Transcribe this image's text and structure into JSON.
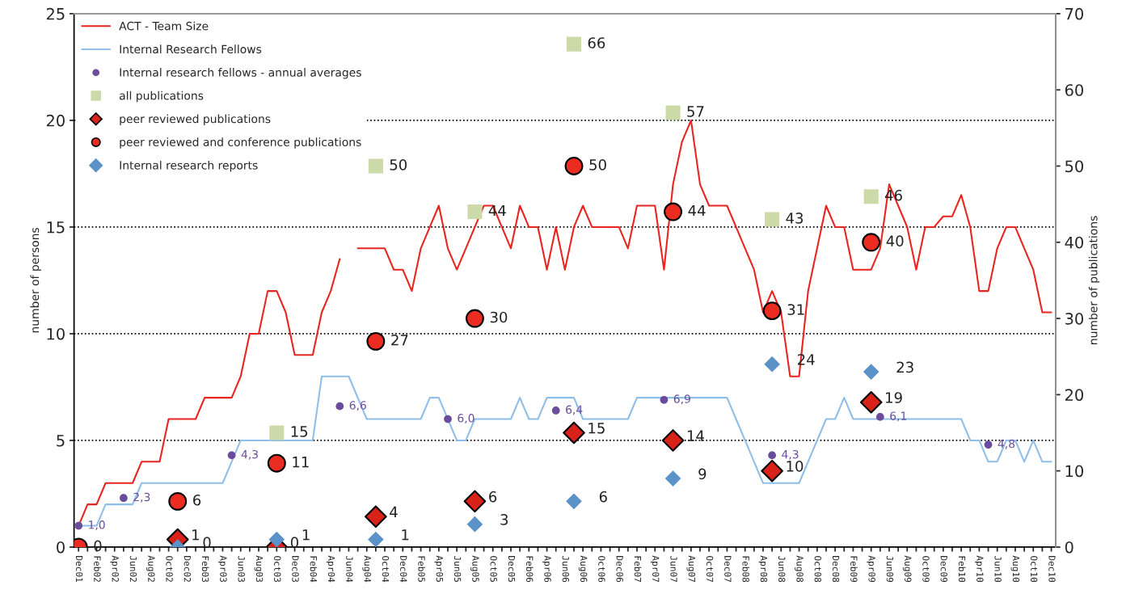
{
  "chart_data": {
    "type": "line",
    "categories": [
      "Dec01",
      null,
      "Feb02",
      null,
      "Apr02",
      null,
      "Jun02",
      null,
      "Aug02",
      null,
      "Oct02",
      null,
      "Dec02",
      null,
      "Feb03",
      null,
      "Apr03",
      null,
      "Jun03",
      null,
      "Aug03",
      null,
      "Oct03",
      null,
      "Dec03",
      null,
      "Feb04",
      null,
      "Apr04",
      null,
      "Jun04",
      null,
      "Aug04",
      null,
      "Oct04",
      null,
      "Dec04",
      null,
      "Feb05",
      null,
      "Apr05",
      null,
      "Jun05",
      null,
      "Aug05",
      null,
      "Oct05",
      null,
      "Dec05",
      null,
      "Feb06",
      null,
      "Apr06",
      null,
      "Jun06",
      null,
      "Aug06",
      null,
      "Oct06",
      null,
      "Dec06",
      null,
      "Feb07",
      null,
      "Apr07",
      null,
      "Jun07",
      null,
      "Aug07",
      null,
      "Oct07",
      null,
      "Dec07",
      null,
      "Feb08",
      null,
      "Apr08",
      null,
      "Jun08",
      null,
      "Aug08",
      null,
      "Oct08",
      null,
      "Dec08",
      null,
      "Feb09",
      null,
      "Apr09",
      null,
      "Jun09",
      null,
      "Aug09",
      null,
      "Oct09",
      null,
      "Dec09",
      null,
      "Feb10",
      null,
      "Apr10",
      null,
      "Jun10",
      null,
      "Aug10",
      null,
      "Oct10",
      null,
      "Dec10"
    ],
    "ylabel": "number of persons",
    "y2label": "number of publications",
    "ylim": [
      0,
      25
    ],
    "yticks": [
      0,
      5,
      10,
      15,
      20,
      25
    ],
    "y2lim": [
      0,
      70
    ],
    "y2ticks": [
      0,
      10,
      20,
      30,
      40,
      50,
      60,
      70
    ],
    "grid": "y",
    "legend": "top left",
    "series": [
      {
        "name": "ACT - Team Size",
        "color": "#e8251f",
        "marker": "none",
        "values": [
          1,
          2,
          2,
          3,
          3,
          3,
          3,
          4,
          4,
          4,
          6,
          6,
          6,
          6,
          7,
          7,
          7,
          7,
          8,
          10,
          10,
          12,
          12,
          11,
          9,
          9,
          9,
          11,
          12,
          13.5,
          null,
          14,
          14,
          14,
          14,
          13,
          13,
          12,
          14,
          15,
          16,
          14,
          13,
          14,
          15,
          16,
          16,
          15,
          14,
          16,
          15,
          15,
          13,
          15,
          13,
          15,
          16,
          15,
          15,
          15,
          15,
          14,
          16,
          16,
          16,
          13,
          17,
          19,
          20,
          17,
          16,
          16,
          16,
          15,
          14,
          13,
          11,
          12,
          11,
          8,
          8,
          12,
          14,
          16,
          15,
          15,
          13,
          13,
          13,
          14,
          17,
          16,
          15,
          13,
          15,
          15,
          15.5,
          15.5,
          16.5,
          15,
          12,
          12,
          14,
          15,
          15,
          14,
          13,
          11,
          11
        ]
      },
      {
        "name": "Internal Research Fellows",
        "color": "#8fbfe8",
        "marker": "none",
        "values": [
          1,
          1,
          1,
          2,
          2,
          2,
          2,
          3,
          3,
          3,
          3,
          3,
          3,
          3,
          3,
          3,
          3,
          4,
          5,
          5,
          5,
          5,
          5,
          5,
          5,
          5,
          5,
          8,
          8,
          8,
          8,
          7,
          6,
          6,
          6,
          6,
          6,
          6,
          6,
          7,
          7,
          6,
          5,
          5,
          6,
          6,
          6,
          6,
          6,
          7,
          6,
          6,
          7,
          7,
          7,
          7,
          6,
          6,
          6,
          6,
          6,
          6,
          7,
          7,
          7,
          7,
          7,
          7,
          7,
          7,
          7,
          7,
          7,
          6,
          5,
          4,
          3,
          3,
          3,
          3,
          3,
          4,
          5,
          6,
          6,
          7,
          6,
          6,
          6,
          6,
          6,
          6,
          6,
          6,
          6,
          6,
          6,
          6,
          6,
          5,
          5,
          4,
          4,
          5,
          5,
          4,
          5,
          4,
          4
        ]
      },
      {
        "name": "Internal research fellows - annual averages",
        "type": "scatter",
        "color": "#6a4c9c",
        "marker": "circle",
        "values": [
          1.0,
          null,
          null,
          null,
          null,
          2.3,
          null,
          null,
          null,
          null,
          null,
          null,
          null,
          null,
          null,
          null,
          null,
          4.3,
          null,
          null,
          null,
          null,
          null,
          null,
          null,
          null,
          null,
          null,
          null,
          6.6,
          null,
          null,
          null,
          null,
          null,
          null,
          null,
          null,
          null,
          null,
          null,
          6.0,
          null,
          null,
          null,
          null,
          null,
          null,
          null,
          null,
          null,
          null,
          null,
          6.4,
          null,
          null,
          null,
          null,
          null,
          null,
          null,
          null,
          null,
          null,
          null,
          6.9,
          null,
          null,
          null,
          null,
          null,
          null,
          null,
          null,
          null,
          null,
          null,
          4.3,
          null,
          null,
          null,
          null,
          null,
          null,
          null,
          null,
          null,
          null,
          null,
          6.1,
          null,
          null,
          null,
          null,
          null,
          null,
          null,
          null,
          null,
          null,
          null,
          4.8,
          null,
          null,
          null,
          null,
          null,
          null,
          null
        ],
        "value_labels": [
          "1,0",
          null,
          null,
          null,
          null,
          "2,3",
          null,
          null,
          null,
          null,
          null,
          null,
          null,
          null,
          null,
          null,
          null,
          "4,3",
          null,
          null,
          null,
          null,
          null,
          null,
          null,
          null,
          null,
          null,
          null,
          "6,6",
          null,
          null,
          null,
          null,
          null,
          null,
          null,
          null,
          null,
          null,
          null,
          "6,0",
          null,
          null,
          null,
          null,
          null,
          null,
          null,
          null,
          null,
          null,
          null,
          "6,4",
          null,
          null,
          null,
          null,
          null,
          null,
          null,
          null,
          null,
          null,
          null,
          "6,9",
          null,
          null,
          null,
          null,
          null,
          null,
          null,
          null,
          null,
          null,
          null,
          "4,3",
          null,
          null,
          null,
          null,
          null,
          null,
          null,
          null,
          null,
          null,
          null,
          "6,1",
          null,
          null,
          null,
          null,
          null,
          null,
          null,
          null,
          null,
          null,
          null,
          "4,8",
          null,
          null,
          null,
          null,
          null,
          null,
          null
        ]
      },
      {
        "name": "all publications",
        "type": "scatter",
        "axis": "y2",
        "color": "#ccd9a8",
        "marker": "square",
        "values": [
          null,
          null,
          null,
          null,
          null,
          null,
          null,
          null,
          null,
          null,
          null,
          null,
          null,
          null,
          null,
          null,
          null,
          null,
          null,
          null,
          null,
          null,
          15,
          null,
          null,
          null,
          null,
          null,
          null,
          null,
          null,
          null,
          null,
          50,
          null,
          null,
          null,
          null,
          null,
          null,
          null,
          null,
          null,
          null,
          44,
          null,
          null,
          null,
          null,
          null,
          null,
          null,
          null,
          null,
          null,
          66,
          null,
          null,
          null,
          null,
          null,
          null,
          null,
          null,
          null,
          null,
          57,
          null,
          null,
          null,
          null,
          null,
          null,
          null,
          null,
          null,
          null,
          43,
          null,
          null,
          null,
          null,
          null,
          null,
          null,
          null,
          null,
          null,
          46,
          null,
          null,
          null,
          null,
          null,
          null,
          null,
          null,
          null,
          null,
          null,
          null,
          null,
          null,
          null,
          null,
          null,
          null,
          null,
          null
        ],
        "value_labels": [
          null,
          null,
          null,
          null,
          null,
          null,
          null,
          null,
          null,
          null,
          null,
          null,
          null,
          null,
          null,
          null,
          null,
          null,
          null,
          null,
          null,
          null,
          "15",
          null,
          null,
          null,
          null,
          null,
          null,
          null,
          null,
          null,
          null,
          "50",
          null,
          null,
          null,
          null,
          null,
          null,
          null,
          null,
          null,
          null,
          "44",
          null,
          null,
          null,
          null,
          null,
          null,
          null,
          null,
          null,
          null,
          "66",
          null,
          null,
          null,
          null,
          null,
          null,
          null,
          null,
          null,
          null,
          "57",
          null,
          null,
          null,
          null,
          null,
          null,
          null,
          null,
          null,
          null,
          "43",
          null,
          null,
          null,
          null,
          null,
          null,
          null,
          null,
          null,
          null,
          "46",
          null,
          null,
          null,
          null,
          null,
          null,
          null,
          null,
          null,
          null,
          null,
          null,
          null,
          null,
          null,
          null,
          null,
          null,
          null,
          null
        ]
      },
      {
        "name": "peer reviewed publications",
        "type": "scatter",
        "axis": "y2",
        "color": "#d8221a",
        "marker": "diamond",
        "values": [
          null,
          null,
          null,
          null,
          null,
          null,
          null,
          null,
          null,
          null,
          null,
          1,
          null,
          null,
          null,
          null,
          null,
          null,
          null,
          null,
          null,
          null,
          0,
          null,
          null,
          null,
          null,
          null,
          null,
          null,
          null,
          null,
          null,
          4,
          null,
          null,
          null,
          null,
          null,
          null,
          null,
          null,
          null,
          null,
          6,
          null,
          null,
          null,
          null,
          null,
          null,
          null,
          null,
          null,
          null,
          15,
          null,
          null,
          null,
          null,
          null,
          null,
          null,
          null,
          null,
          null,
          14,
          null,
          null,
          null,
          null,
          null,
          null,
          null,
          null,
          null,
          null,
          10,
          null,
          null,
          null,
          null,
          null,
          null,
          null,
          null,
          null,
          null,
          19,
          null,
          null,
          null,
          null,
          null,
          null,
          null,
          null,
          null,
          null,
          null,
          null,
          null,
          null,
          null,
          null,
          null,
          null,
          null,
          null
        ],
        "value_labels": [
          null,
          null,
          null,
          null,
          null,
          null,
          null,
          null,
          null,
          null,
          null,
          "1",
          null,
          null,
          null,
          null,
          null,
          null,
          null,
          null,
          null,
          null,
          "0",
          null,
          null,
          null,
          null,
          null,
          null,
          null,
          null,
          null,
          null,
          "4",
          null,
          null,
          null,
          null,
          null,
          null,
          null,
          null,
          null,
          null,
          "6",
          null,
          null,
          null,
          null,
          null,
          null,
          null,
          null,
          null,
          null,
          "15",
          null,
          null,
          null,
          null,
          null,
          null,
          null,
          null,
          null,
          null,
          "14",
          null,
          null,
          null,
          null,
          null,
          null,
          null,
          null,
          null,
          null,
          "10",
          null,
          null,
          null,
          null,
          null,
          null,
          null,
          null,
          null,
          null,
          "19",
          null,
          null,
          null,
          null,
          null,
          null,
          null,
          null,
          null,
          null,
          null,
          null,
          null,
          null,
          null,
          null,
          null,
          null,
          null,
          null
        ]
      },
      {
        "name": "peer reviewed and conference publications",
        "type": "scatter",
        "axis": "y2",
        "color": "#ec2c20",
        "marker": "circle",
        "values": [
          0,
          null,
          null,
          null,
          null,
          null,
          null,
          null,
          null,
          null,
          null,
          6,
          null,
          null,
          null,
          null,
          null,
          null,
          null,
          null,
          null,
          null,
          11,
          null,
          null,
          null,
          null,
          null,
          null,
          null,
          null,
          null,
          null,
          27,
          null,
          null,
          null,
          null,
          null,
          null,
          null,
          null,
          null,
          null,
          30,
          null,
          null,
          null,
          null,
          null,
          null,
          null,
          null,
          null,
          null,
          50,
          null,
          null,
          null,
          null,
          null,
          null,
          null,
          null,
          null,
          null,
          44,
          null,
          null,
          null,
          null,
          null,
          null,
          null,
          null,
          null,
          null,
          31,
          null,
          null,
          null,
          null,
          null,
          null,
          null,
          null,
          null,
          null,
          40,
          null,
          null,
          null,
          null,
          null,
          null,
          null,
          null,
          null,
          null,
          null,
          null,
          null,
          null,
          null,
          null,
          null,
          null,
          null,
          null
        ],
        "value_labels": [
          "0",
          null,
          null,
          null,
          null,
          null,
          null,
          null,
          null,
          null,
          null,
          "6",
          null,
          null,
          null,
          null,
          null,
          null,
          null,
          null,
          null,
          null,
          "11",
          null,
          null,
          null,
          null,
          null,
          null,
          null,
          null,
          null,
          null,
          "27",
          null,
          null,
          null,
          null,
          null,
          null,
          null,
          null,
          null,
          null,
          "30",
          null,
          null,
          null,
          null,
          null,
          null,
          null,
          null,
          null,
          null,
          "50",
          null,
          null,
          null,
          null,
          null,
          null,
          null,
          null,
          null,
          null,
          "44",
          null,
          null,
          null,
          null,
          null,
          null,
          null,
          null,
          null,
          null,
          "31",
          null,
          null,
          null,
          null,
          null,
          null,
          null,
          null,
          null,
          null,
          "40",
          null,
          null,
          null,
          null,
          null,
          null,
          null,
          null,
          null,
          null,
          null,
          null,
          null,
          null,
          null,
          null,
          null,
          null,
          null,
          null
        ]
      },
      {
        "name": "Internal research reports",
        "type": "scatter",
        "axis": "y2",
        "color": "#5b93c8",
        "marker": "diamond",
        "values": [
          null,
          null,
          null,
          null,
          null,
          null,
          null,
          null,
          null,
          null,
          null,
          0,
          null,
          null,
          null,
          null,
          null,
          null,
          null,
          null,
          null,
          null,
          1,
          null,
          null,
          null,
          null,
          null,
          null,
          null,
          null,
          null,
          null,
          1,
          null,
          null,
          null,
          null,
          null,
          null,
          null,
          null,
          null,
          null,
          3,
          null,
          null,
          null,
          null,
          null,
          null,
          null,
          null,
          null,
          null,
          6,
          null,
          null,
          null,
          null,
          null,
          null,
          null,
          null,
          null,
          null,
          9,
          null,
          null,
          null,
          null,
          null,
          null,
          null,
          null,
          null,
          null,
          24,
          null,
          null,
          null,
          null,
          null,
          null,
          null,
          null,
          null,
          null,
          23,
          null,
          null,
          null,
          null,
          null,
          null,
          null,
          null,
          null,
          null,
          null,
          null,
          null,
          null,
          null,
          null,
          null,
          null,
          null,
          null
        ],
        "value_labels": [
          null,
          null,
          null,
          null,
          null,
          null,
          null,
          null,
          null,
          null,
          null,
          "0",
          null,
          null,
          null,
          null,
          null,
          null,
          null,
          null,
          null,
          null,
          "1",
          null,
          null,
          null,
          null,
          null,
          null,
          null,
          null,
          null,
          null,
          "1",
          null,
          null,
          null,
          null,
          null,
          null,
          null,
          null,
          null,
          null,
          "3",
          null,
          null,
          null,
          null,
          null,
          null,
          null,
          null,
          null,
          null,
          "6",
          null,
          null,
          null,
          null,
          null,
          null,
          null,
          null,
          null,
          null,
          "9",
          null,
          null,
          null,
          null,
          null,
          null,
          null,
          null,
          null,
          null,
          "24",
          null,
          null,
          null,
          null,
          null,
          null,
          null,
          null,
          null,
          null,
          "23",
          null,
          null,
          null,
          null,
          null,
          null,
          null,
          null,
          null,
          null,
          null,
          null,
          null,
          null,
          null,
          null,
          null,
          null,
          null,
          null
        ]
      }
    ]
  }
}
